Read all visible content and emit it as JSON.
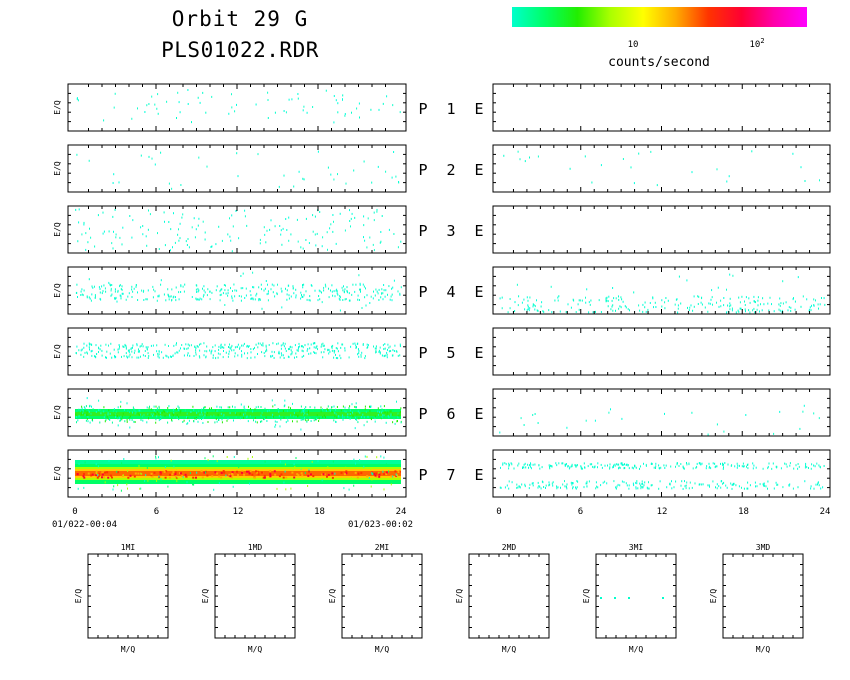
{
  "header": {
    "title_orbit": "Orbit 29 G",
    "title_file": "PLS01022.RDR"
  },
  "colorbar": {
    "label": "counts/second",
    "tick_labels": [
      {
        "base": "10",
        "exp": ""
      },
      {
        "base": "10",
        "exp": "2"
      }
    ],
    "stops": [
      "#00ffcc",
      "#00ff66",
      "#22ee00",
      "#aaff00",
      "#ffff00",
      "#ffaa00",
      "#ff3300",
      "#ff0033",
      "#ff00aa",
      "#ff00ff"
    ]
  },
  "chart_data": [
    {
      "type": "heatmap",
      "panel": "E/Q vs time, P and E channels",
      "ylabel": "E/Q",
      "x_ticks": [
        "0",
        "6",
        "12",
        "18",
        "24"
      ],
      "x_range": [
        0,
        24
      ],
      "left_start_label": "01/022-00:04",
      "left_end_label": "01/023-00:02",
      "rows": [
        {
          "p_label": "P",
          "num": "1",
          "e_label": "E"
        },
        {
          "p_label": "P",
          "num": "2",
          "e_label": "E"
        },
        {
          "p_label": "P",
          "num": "3",
          "e_label": "E"
        },
        {
          "p_label": "P",
          "num": "4",
          "e_label": "E"
        },
        {
          "p_label": "P",
          "num": "5",
          "e_label": "E"
        },
        {
          "p_label": "P",
          "num": "6",
          "e_label": "E"
        },
        {
          "p_label": "P",
          "num": "7",
          "e_label": "E"
        }
      ]
    },
    {
      "type": "heatmap",
      "panel": "E/Q vs M/Q",
      "xlabel": "M/Q",
      "ylabel": "E/Q",
      "subplots": [
        "1MI",
        "1MD",
        "2MI",
        "2MD",
        "3MI",
        "3MD"
      ]
    }
  ]
}
